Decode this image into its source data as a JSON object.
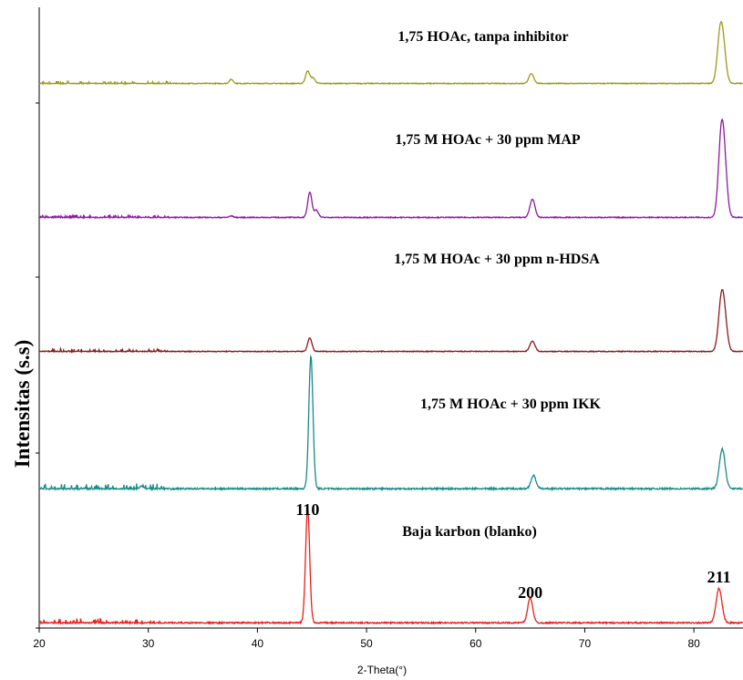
{
  "chart_data": {
    "type": "line",
    "xlabel": "2-Theta(°)",
    "ylabel": "Intensitas (s.s)",
    "xlim": [
      20,
      84.5
    ],
    "xticks": [
      20,
      30,
      40,
      50,
      60,
      70,
      80
    ],
    "grid": false,
    "series": [
      {
        "name": "1,75 HOAc, tanpa inhibitor",
        "color": "#9a9a1a",
        "peaks": [
          [
            37.6,
            0.06
          ],
          [
            44.6,
            0.18
          ],
          [
            45.1,
            0.08
          ],
          [
            65.1,
            0.14
          ],
          [
            82.4,
            0.65
          ],
          [
            82.7,
            0.4
          ]
        ]
      },
      {
        "name": "1,75 M HOAc  + 30 ppm MAP",
        "color": "#8b1a9e",
        "peaks": [
          [
            37.6,
            0.02
          ],
          [
            44.8,
            0.35
          ],
          [
            45.4,
            0.1
          ],
          [
            65.2,
            0.25
          ],
          [
            82.5,
            1.0
          ],
          [
            82.8,
            0.55
          ]
        ]
      },
      {
        "name": "1,75 M HOAc  + 30 ppm n-HDSA",
        "color": "#8b1a1a",
        "peaks": [
          [
            44.8,
            0.2
          ],
          [
            65.2,
            0.15
          ],
          [
            82.5,
            0.65
          ],
          [
            82.8,
            0.4
          ]
        ]
      },
      {
        "name": "1,75 M HOAc  +  30 ppm IKK",
        "color": "#1a8a8a",
        "peaks": [
          [
            29.4,
            0.02
          ],
          [
            44.9,
            1.0
          ],
          [
            65.3,
            0.1
          ],
          [
            82.6,
            0.3
          ]
        ]
      },
      {
        "name": "Baja karbon (blanko)",
        "color": "#e8201a",
        "peaks": [
          [
            44.6,
            1.0
          ],
          [
            65.0,
            0.22
          ],
          [
            82.3,
            0.3
          ]
        ]
      }
    ],
    "peak_labels": [
      {
        "text": "110",
        "x": 44.6
      },
      {
        "text": "200",
        "x": 65.0
      },
      {
        "text": "211",
        "x": 82.3
      }
    ]
  }
}
